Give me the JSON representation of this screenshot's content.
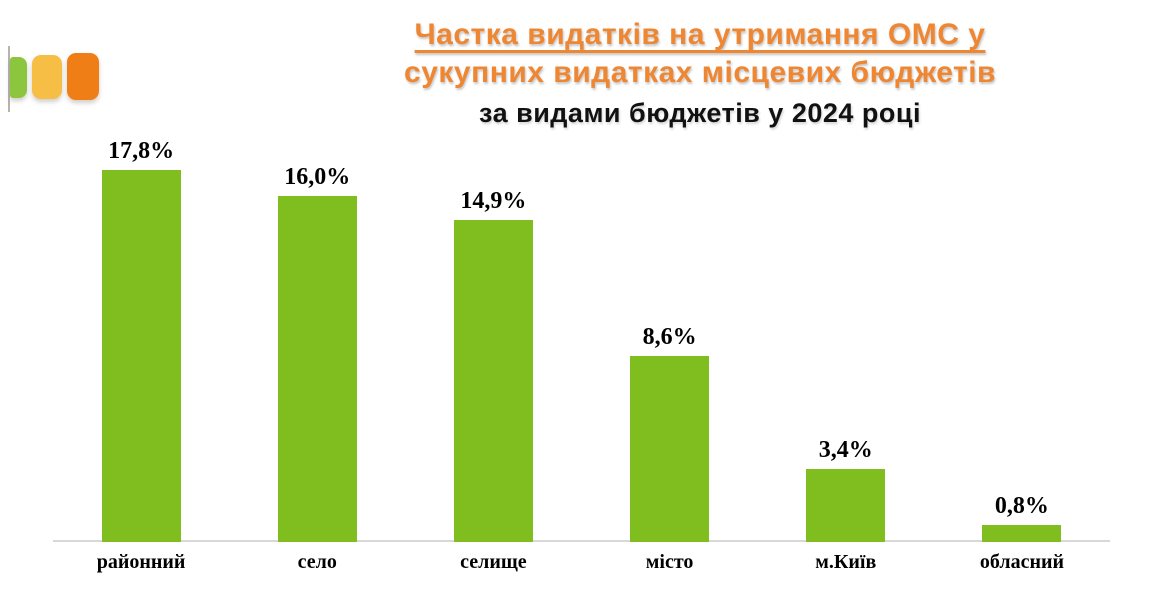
{
  "logo": {
    "colors": {
      "green": "#8cc63f",
      "yellow": "#f7be45",
      "orange": "#f07e16"
    }
  },
  "title": {
    "line1": "Частка видатків на утримання ОМС у",
    "line2": "сукупних видатках місцевих бюджетів",
    "line3": "за видами бюджетів у 2024 році",
    "accent_color": "#ef8632"
  },
  "chart_data": {
    "type": "bar",
    "title": "Частка видатків на утримання ОМС у сукупних видатках місцевих бюджетів за видами бюджетів у 2024 році",
    "categories": [
      "районний",
      "село",
      "селище",
      "місто",
      "м.Київ",
      "обласний"
    ],
    "values": [
      17.8,
      16.0,
      14.9,
      8.6,
      3.4,
      0.8
    ],
    "value_labels": [
      "17,8%",
      "16,0%",
      "14,9%",
      "8,6%",
      "3,4%",
      "0,8%"
    ],
    "xlabel": "",
    "ylabel": "",
    "ylim": [
      0,
      18.7
    ],
    "grid": false,
    "legend": false,
    "bar_color": "#80bd1e",
    "axis_color": "#d8d8d8"
  }
}
